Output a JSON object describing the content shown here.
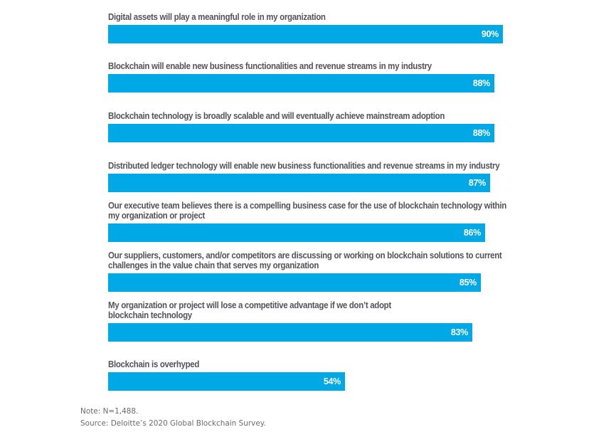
{
  "chart_data": {
    "type": "bar",
    "orientation": "horizontal",
    "title": "",
    "xlabel": "",
    "ylabel": "",
    "xlim": [
      0,
      100
    ],
    "grid": false,
    "legend": "none",
    "bar_color": "#00a8e6",
    "value_suffix": "%",
    "categories": [
      [
        "Digital assets will play a meaningful role in my organization"
      ],
      [
        "Blockchain will enable new business functionalities and revenue streams in my industry"
      ],
      [
        "Blockchain technology is broadly scalable and will eventually achieve mainstream adoption"
      ],
      [
        "Distributed ledger technology will enable new business functionalities and revenue streams in my industry"
      ],
      [
        "Our executive team believes there is a compelling business case for the use of blockchain technology within",
        "my organization or project"
      ],
      [
        "Our suppliers, customers, and/or competitors are discussing or working on blockchain solutions to current",
        "challenges in the value chain that serves my organization"
      ],
      [
        "My organization or project will lose a competitive advantage if we don’t adopt",
        "blockchain technology"
      ],
      [
        "Blockchain is overhyped"
      ]
    ],
    "values": [
      90,
      88,
      88,
      87,
      86,
      85,
      83,
      54
    ],
    "value_labels": [
      "90%",
      "88%",
      "88%",
      "87%",
      "86%",
      "85%",
      "83%",
      "54%"
    ]
  },
  "notes": {
    "note": "Note: N=1,488.",
    "source": "Source: Deloitte’s 2020 Global Blockchain Survey."
  }
}
